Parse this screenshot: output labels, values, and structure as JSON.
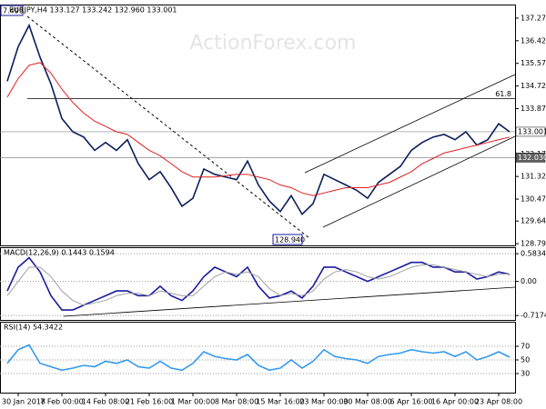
{
  "chart_data": [
    {
      "type": "line",
      "title": "EURJPY,H4 133.127 133.242 132.960 133.001",
      "watermark": "ActionForex.com",
      "categories": [
        null,
        "30 Jan 2018",
        null,
        null,
        null,
        "7 Feb 00:00",
        null,
        null,
        null,
        "14 Feb 08:00",
        null,
        null,
        null,
        "21 Feb 16:00",
        null,
        null,
        null,
        "1 Mar 00:00",
        null,
        null,
        null,
        "8 Mar 08:00",
        null,
        null,
        null,
        "15 Mar 16:00",
        null,
        null,
        null,
        "23 Mar 00:00",
        null,
        null,
        null,
        "30 Mar 08:00",
        null,
        null,
        null,
        "6 Apr 16:00",
        null,
        null,
        null,
        "16 Apr 00:00",
        null,
        null,
        null,
        "23 Apr 08:00",
        null
      ],
      "series": [
        {
          "name": "EURJPY",
          "color": "#0a1e5a",
          "values": [
            134.9,
            136.2,
            137.0,
            135.8,
            134.8,
            133.5,
            133.0,
            132.8,
            132.3,
            132.6,
            132.3,
            132.7,
            131.8,
            131.2,
            131.5,
            130.9,
            130.2,
            130.5,
            131.6,
            131.4,
            131.3,
            131.2,
            131.9,
            131.0,
            130.4,
            130.0,
            130.6,
            129.9,
            130.3,
            131.4,
            131.2,
            131.0,
            130.8,
            130.5,
            131.1,
            131.4,
            131.7,
            132.3,
            132.6,
            132.8,
            132.9,
            132.7,
            133.0,
            132.5,
            132.7,
            133.3,
            133.0
          ]
        },
        {
          "name": "MA",
          "color": "#e02020",
          "values": [
            134.3,
            135.0,
            135.5,
            135.6,
            135.2,
            134.6,
            134.1,
            133.7,
            133.4,
            133.2,
            133.0,
            132.9,
            132.6,
            132.3,
            132.1,
            131.8,
            131.5,
            131.3,
            131.3,
            131.3,
            131.35,
            131.4,
            131.4,
            131.3,
            131.2,
            131.0,
            130.9,
            130.7,
            130.6,
            130.7,
            130.8,
            130.9,
            130.9,
            130.9,
            131.0,
            131.1,
            131.3,
            131.5,
            131.8,
            132.0,
            132.2,
            132.3,
            132.4,
            132.5,
            132.6,
            132.7,
            132.8
          ]
        }
      ],
      "ylim": [
        128.73,
        137.78
      ],
      "yticks": [
        {
          "value": 137.27,
          "label": "137.270"
        },
        {
          "value": 136.42,
          "label": "136.420"
        },
        {
          "value": 135.57,
          "label": "135.570"
        },
        {
          "value": 134.72,
          "label": "134.720"
        },
        {
          "value": 133.87,
          "label": "133.870"
        },
        {
          "value": 132.17,
          "label": "132.170"
        },
        {
          "value": 131.32,
          "label": "131.320"
        },
        {
          "value": 130.47,
          "label": "130.470"
        },
        129.645,
        128.795
      ],
      "price_lines": [
        {
          "value": 133.001,
          "label": "133.001",
          "color": "#ffffff"
        },
        {
          "value": 132.03,
          "label": "132.030",
          "color": "#606060"
        }
      ],
      "fib_level": {
        "name": "61.8",
        "value": 134.25
      },
      "annotations": [
        "7.499",
        "128.940"
      ]
    },
    {
      "type": "line",
      "title": "MACD(12,26,9) 0.1443 0.1594",
      "series": [
        {
          "name": "MACD",
          "color": "#1a1aa0",
          "values": [
            -0.2,
            0.3,
            0.5,
            0.2,
            -0.3,
            -0.6,
            -0.6,
            -0.5,
            -0.4,
            -0.3,
            -0.2,
            -0.2,
            -0.3,
            -0.3,
            -0.1,
            -0.3,
            -0.4,
            -0.2,
            0.1,
            0.3,
            0.2,
            0.1,
            0.3,
            -0.1,
            -0.35,
            -0.3,
            -0.2,
            -0.35,
            -0.1,
            0.3,
            0.3,
            0.2,
            0.1,
            0.0,
            0.1,
            0.2,
            0.3,
            0.4,
            0.4,
            0.3,
            0.3,
            0.2,
            0.2,
            0.05,
            0.1,
            0.2,
            0.15
          ]
        },
        {
          "name": "Signal",
          "color": "#a0a0a0",
          "values": [
            -0.3,
            0.0,
            0.3,
            0.3,
            0.1,
            -0.2,
            -0.4,
            -0.5,
            -0.45,
            -0.4,
            -0.3,
            -0.25,
            -0.25,
            -0.3,
            -0.2,
            -0.25,
            -0.3,
            -0.3,
            -0.1,
            0.1,
            0.2,
            0.15,
            0.2,
            0.1,
            -0.15,
            -0.3,
            -0.25,
            -0.3,
            -0.2,
            0.05,
            0.2,
            0.25,
            0.2,
            0.1,
            0.05,
            0.1,
            0.2,
            0.3,
            0.35,
            0.35,
            0.3,
            0.25,
            0.2,
            0.15,
            0.1,
            0.15,
            0.16
          ]
        }
      ],
      "ylim": [
        -0.81,
        0.72
      ],
      "yticks": [
        0.5834,
        {
          "value": 0,
          "label": "0.00"
        },
        -0.7174
      ]
    },
    {
      "type": "line",
      "title": "RSI(14) 54.3422",
      "series": [
        {
          "name": "RSI",
          "color": "#3399ee",
          "values": [
            45,
            65,
            72,
            45,
            40,
            35,
            38,
            42,
            40,
            48,
            45,
            50,
            40,
            38,
            48,
            38,
            35,
            45,
            62,
            55,
            52,
            50,
            58,
            42,
            35,
            38,
            50,
            38,
            48,
            65,
            55,
            52,
            50,
            45,
            55,
            58,
            60,
            65,
            62,
            60,
            62,
            55,
            62,
            50,
            55,
            62,
            54
          ]
        }
      ],
      "ylim": [
        2,
        106
      ],
      "yticks": [
        70,
        50,
        30
      ]
    }
  ]
}
